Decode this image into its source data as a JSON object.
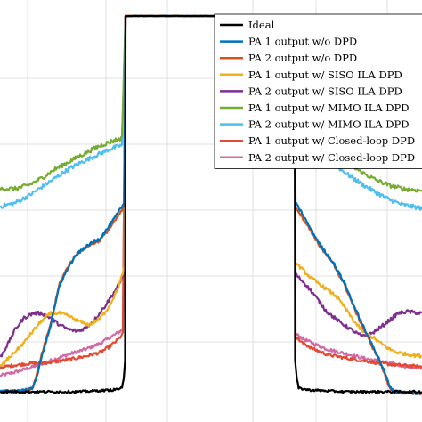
{
  "chart_data": {
    "type": "line",
    "x_domain": [
      -474,
      474
    ],
    "y_domain": [
      -474,
      0
    ],
    "grid": true,
    "legend_position": "top-right",
    "series": [
      {
        "name": "Ideal",
        "color": "#000000",
        "noise": 0.6,
        "points": [
          [
            -474,
            -440
          ],
          [
            -300,
            -440
          ],
          [
            -220,
            -438
          ],
          [
            -200,
            -436
          ],
          [
            -196,
            -426
          ],
          [
            -193,
            -405
          ],
          [
            -192,
            -18
          ],
          [
            -186,
            -18
          ],
          [
            -180,
            -18
          ],
          [
            180,
            -18
          ],
          [
            186,
            -18
          ],
          [
            188,
            -18
          ],
          [
            189,
            -405
          ],
          [
            193,
            -426
          ],
          [
            197,
            -436
          ],
          [
            220,
            -438
          ],
          [
            300,
            -440
          ],
          [
            474,
            -440
          ]
        ]
      },
      {
        "name": "PA 1 output w/o DPD",
        "color": "#0072BD",
        "noise": 0.8,
        "points": [
          [
            -474,
            -440
          ],
          [
            -410,
            -438
          ],
          [
            -400,
            -436
          ],
          [
            -390,
            -420
          ],
          [
            -380,
            -400
          ],
          [
            -360,
            -365
          ],
          [
            -340,
            -320
          ],
          [
            -320,
            -300
          ],
          [
            -300,
            -285
          ],
          [
            -275,
            -275
          ],
          [
            -250,
            -268
          ],
          [
            -230,
            -255
          ],
          [
            -210,
            -240
          ],
          [
            -195,
            -228
          ],
          [
            -192,
            -18
          ],
          [
            188,
            -18
          ],
          [
            190,
            -228
          ],
          [
            205,
            -240
          ],
          [
            225,
            -258
          ],
          [
            245,
            -275
          ],
          [
            275,
            -295
          ],
          [
            300,
            -318
          ],
          [
            325,
            -348
          ],
          [
            350,
            -375
          ],
          [
            375,
            -400
          ],
          [
            390,
            -418
          ],
          [
            400,
            -432
          ],
          [
            410,
            -440
          ],
          [
            474,
            -442
          ]
        ]
      },
      {
        "name": "PA 2 output w/o DPD",
        "color": "#D95319",
        "noise": 0.8,
        "points": [
          [
            -474,
            -440
          ],
          [
            -410,
            -438
          ],
          [
            -400,
            -435
          ],
          [
            -390,
            -418
          ],
          [
            -380,
            -398
          ],
          [
            -360,
            -363
          ],
          [
            -340,
            -318
          ],
          [
            -320,
            -298
          ],
          [
            -300,
            -284
          ],
          [
            -275,
            -276
          ],
          [
            -250,
            -270
          ],
          [
            -230,
            -258
          ],
          [
            -210,
            -244
          ],
          [
            -195,
            -232
          ],
          [
            -192,
            -18
          ],
          [
            188,
            -18
          ],
          [
            190,
            -232
          ],
          [
            205,
            -244
          ],
          [
            225,
            -260
          ],
          [
            245,
            -277
          ],
          [
            275,
            -297
          ],
          [
            300,
            -320
          ],
          [
            325,
            -350
          ],
          [
            350,
            -377
          ],
          [
            375,
            -402
          ],
          [
            390,
            -420
          ],
          [
            400,
            -434
          ],
          [
            410,
            -440
          ],
          [
            474,
            -442
          ]
        ]
      },
      {
        "name": "PA 1 output w/ SISO ILA DPD",
        "color": "#EDB120",
        "noise": 1.0,
        "points": [
          [
            -474,
            -412
          ],
          [
            -450,
            -400
          ],
          [
            -420,
            -385
          ],
          [
            -400,
            -372
          ],
          [
            -380,
            -360
          ],
          [
            -360,
            -352
          ],
          [
            -340,
            -352
          ],
          [
            -320,
            -355
          ],
          [
            -300,
            -360
          ],
          [
            -275,
            -365
          ],
          [
            -250,
            -358
          ],
          [
            -230,
            -345
          ],
          [
            -210,
            -325
          ],
          [
            -200,
            -310
          ],
          [
            -195,
            -300
          ],
          [
            -192,
            -18
          ],
          [
            188,
            -18
          ],
          [
            190,
            -295
          ],
          [
            200,
            -300
          ],
          [
            220,
            -310
          ],
          [
            240,
            -318
          ],
          [
            260,
            -325
          ],
          [
            280,
            -332
          ],
          [
            300,
            -345
          ],
          [
            320,
            -360
          ],
          [
            340,
            -372
          ],
          [
            360,
            -378
          ],
          [
            380,
            -385
          ],
          [
            400,
            -392
          ],
          [
            420,
            -396
          ],
          [
            440,
            -398
          ],
          [
            474,
            -400
          ]
        ]
      },
      {
        "name": "PA 2 output w/ SISO ILA DPD",
        "color": "#7E2F8E",
        "noise": 1.0,
        "points": [
          [
            -474,
            -402
          ],
          [
            -455,
            -385
          ],
          [
            -440,
            -370
          ],
          [
            -420,
            -357
          ],
          [
            -400,
            -352
          ],
          [
            -380,
            -352
          ],
          [
            -360,
            -357
          ],
          [
            -340,
            -365
          ],
          [
            -320,
            -370
          ],
          [
            -300,
            -372
          ],
          [
            -280,
            -368
          ],
          [
            -260,
            -358
          ],
          [
            -240,
            -345
          ],
          [
            -220,
            -330
          ],
          [
            -205,
            -318
          ],
          [
            -195,
            -305
          ],
          [
            -192,
            -18
          ],
          [
            188,
            -18
          ],
          [
            190,
            -308
          ],
          [
            210,
            -318
          ],
          [
            230,
            -330
          ],
          [
            260,
            -350
          ],
          [
            290,
            -362
          ],
          [
            320,
            -372
          ],
          [
            340,
            -378
          ],
          [
            360,
            -375
          ],
          [
            380,
            -368
          ],
          [
            400,
            -360
          ],
          [
            420,
            -352
          ],
          [
            440,
            -350
          ],
          [
            474,
            -352
          ]
        ]
      },
      {
        "name": "PA 1 output w/ MIMO ILA DPD",
        "color": "#77AC30",
        "noise": 1.2,
        "points": [
          [
            -474,
            -212
          ],
          [
            -440,
            -212
          ],
          [
            -410,
            -208
          ],
          [
            -380,
            -200
          ],
          [
            -350,
            -190
          ],
          [
            -320,
            -182
          ],
          [
            -290,
            -174
          ],
          [
            -260,
            -166
          ],
          [
            -230,
            -160
          ],
          [
            -200,
            -155
          ],
          [
            -192,
            -18
          ],
          [
            188,
            -18
          ],
          [
            190,
            -155
          ],
          [
            220,
            -160
          ],
          [
            250,
            -168
          ],
          [
            280,
            -176
          ],
          [
            310,
            -185
          ],
          [
            340,
            -194
          ],
          [
            370,
            -202
          ],
          [
            400,
            -208
          ],
          [
            430,
            -212
          ],
          [
            474,
            -214
          ]
        ]
      },
      {
        "name": "PA 2 output w/ MIMO ILA DPD",
        "color": "#4DBEEE",
        "noise": 1.2,
        "points": [
          [
            -474,
            -232
          ],
          [
            -440,
            -228
          ],
          [
            -410,
            -220
          ],
          [
            -380,
            -210
          ],
          [
            -350,
            -200
          ],
          [
            -320,
            -190
          ],
          [
            -290,
            -182
          ],
          [
            -260,
            -175
          ],
          [
            -230,
            -168
          ],
          [
            -200,
            -163
          ],
          [
            -192,
            -18
          ],
          [
            188,
            -18
          ],
          [
            190,
            -163
          ],
          [
            220,
            -168
          ],
          [
            250,
            -176
          ],
          [
            280,
            -186
          ],
          [
            310,
            -197
          ],
          [
            340,
            -207
          ],
          [
            370,
            -216
          ],
          [
            400,
            -224
          ],
          [
            430,
            -230
          ],
          [
            474,
            -234
          ]
        ]
      },
      {
        "name": "PA 1 output w/ Closed-loop DPD",
        "color": "#E34A33",
        "noise": 0.9,
        "points": [
          [
            -474,
            -413
          ],
          [
            -440,
            -410
          ],
          [
            -400,
            -408
          ],
          [
            -360,
            -407
          ],
          [
            -320,
            -404
          ],
          [
            -280,
            -400
          ],
          [
            -250,
            -396
          ],
          [
            -230,
            -390
          ],
          [
            -210,
            -382
          ],
          [
            -198,
            -375
          ],
          [
            -192,
            -18
          ],
          [
            188,
            -18
          ],
          [
            190,
            -378
          ],
          [
            205,
            -385
          ],
          [
            230,
            -392
          ],
          [
            260,
            -398
          ],
          [
            300,
            -402
          ],
          [
            340,
            -405
          ],
          [
            380,
            -408
          ],
          [
            420,
            -410
          ],
          [
            474,
            -412
          ]
        ]
      },
      {
        "name": "PA 2 output w/ Closed-loop DPD",
        "color": "#D16BA5",
        "noise": 0.9,
        "points": [
          [
            -474,
            -422
          ],
          [
            -440,
            -418
          ],
          [
            -400,
            -412
          ],
          [
            -360,
            -405
          ],
          [
            -320,
            -398
          ],
          [
            -280,
            -392
          ],
          [
            -250,
            -386
          ],
          [
            -230,
            -380
          ],
          [
            -210,
            -374
          ],
          [
            -198,
            -370
          ],
          [
            -192,
            -18
          ],
          [
            188,
            -18
          ],
          [
            190,
            -375
          ],
          [
            205,
            -380
          ],
          [
            230,
            -386
          ],
          [
            260,
            -392
          ],
          [
            300,
            -397
          ],
          [
            340,
            -402
          ],
          [
            380,
            -406
          ],
          [
            420,
            -410
          ],
          [
            474,
            -414
          ]
        ]
      }
    ]
  }
}
